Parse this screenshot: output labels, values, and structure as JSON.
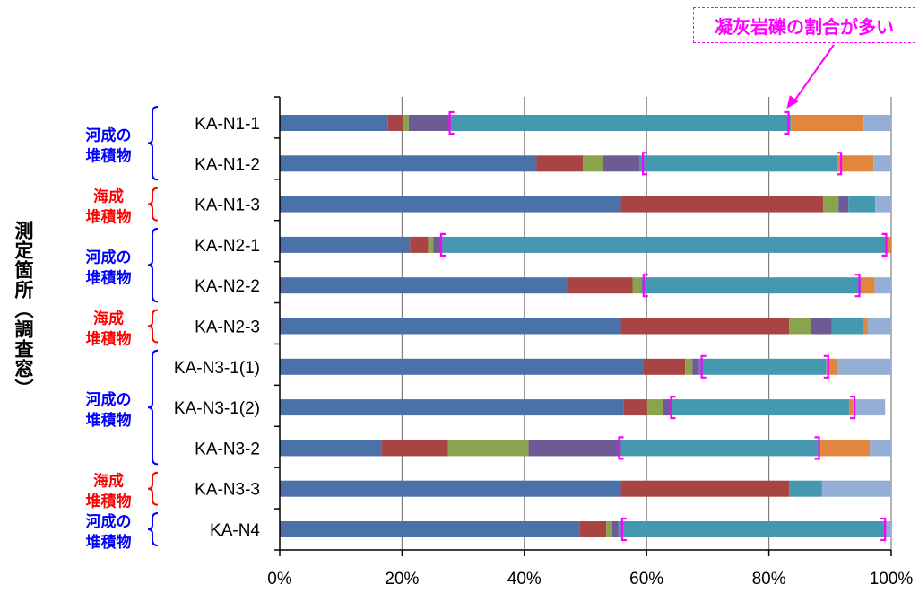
{
  "callout": {
    "text": "凝灰岩礫の割合が多い"
  },
  "ylabel": "測定箇所（調査窓）",
  "chart_data": {
    "type": "bar",
    "orientation": "horizontal",
    "stacked": true,
    "normalized": true,
    "title": "",
    "xlabel": "",
    "ylabel": "測定箇所（調査窓）",
    "xlim": [
      0,
      100
    ],
    "xticks": [
      "0%",
      "20%",
      "40%",
      "60%",
      "80%",
      "100%"
    ],
    "grid": true,
    "categories": [
      "KA-N1-1",
      "KA-N1-2",
      "KA-N1-3",
      "KA-N2-1",
      "KA-N2-2",
      "KA-N2-3",
      "KA-N3-1(1)",
      "KA-N3-1(2)",
      "KA-N3-2",
      "KA-N3-3",
      "KA-N4"
    ],
    "series": [
      {
        "color": "#4a72a8",
        "values": [
          17.7,
          42.0,
          55.8,
          21.3,
          47.1,
          55.8,
          59.4,
          56.2,
          16.6,
          55.8,
          49.0
        ]
      },
      {
        "color": "#a84443",
        "values": [
          2.5,
          7.6,
          33.1,
          3.0,
          10.6,
          27.5,
          6.9,
          3.9,
          10.9,
          27.5,
          4.4
        ]
      },
      {
        "color": "#88a44c",
        "values": [
          0.9,
          3.2,
          2.5,
          0.8,
          1.4,
          3.5,
          1.2,
          2.5,
          13.2,
          0.0,
          1.0
        ]
      },
      {
        "color": "#6e5a94",
        "values": [
          6.8,
          6.1,
          1.6,
          1.3,
          0.0,
          3.5,
          1.1,
          1.5,
          15.1,
          0.0,
          1.0
        ]
      },
      {
        "color": "#4499b0",
        "values": [
          55.7,
          32.4,
          4.4,
          72.8,
          36.0,
          5.1,
          20.8,
          29.0,
          32.5,
          5.4,
          43.8
        ]
      },
      {
        "color": "#e1863e",
        "values": [
          11.9,
          5.8,
          0.0,
          0.8,
          2.2,
          0.8,
          1.7,
          0.7,
          8.2,
          0.0,
          0.0
        ]
      },
      {
        "color": "#94aed6",
        "values": [
          4.5,
          2.9,
          2.6,
          0.0,
          2.7,
          3.8,
          8.9,
          5.2,
          3.5,
          11.3,
          0.8
        ]
      }
    ],
    "brackets": [
      [
        27.8,
        83.2
      ],
      [
        59.4,
        91.8
      ],
      null,
      [
        26.4,
        99.2
      ],
      [
        59.5,
        94.8
      ],
      null,
      [
        69.0,
        89.7
      ],
      [
        64.0,
        94.0
      ],
      [
        55.5,
        88.2
      ],
      null,
      [
        56.0,
        99.0
      ]
    ],
    "groups": [
      {
        "label": [
          "河成の",
          "堆積物"
        ],
        "color": "#0000ff",
        "from": 0,
        "to": 1
      },
      {
        "label": [
          "海成",
          "堆積物"
        ],
        "color": "#ff0000",
        "from": 2,
        "to": 2
      },
      {
        "label": [
          "河成の",
          "堆積物"
        ],
        "color": "#0000ff",
        "from": 3,
        "to": 4
      },
      {
        "label": [
          "海成",
          "堆積物"
        ],
        "color": "#ff0000",
        "from": 5,
        "to": 5
      },
      {
        "label": [
          "河成の",
          "堆積物"
        ],
        "color": "#0000ff",
        "from": 6,
        "to": 8
      },
      {
        "label": [
          "海成",
          "堆積物"
        ],
        "color": "#ff0000",
        "from": 9,
        "to": 9
      },
      {
        "label": [
          "河成の",
          "堆積物"
        ],
        "color": "#0000ff",
        "from": 10,
        "to": 10
      }
    ],
    "annotation": {
      "text": "凝灰岩礫の割合が多い",
      "color": "#ff00ff",
      "points_to": "KA-N1-1"
    }
  }
}
